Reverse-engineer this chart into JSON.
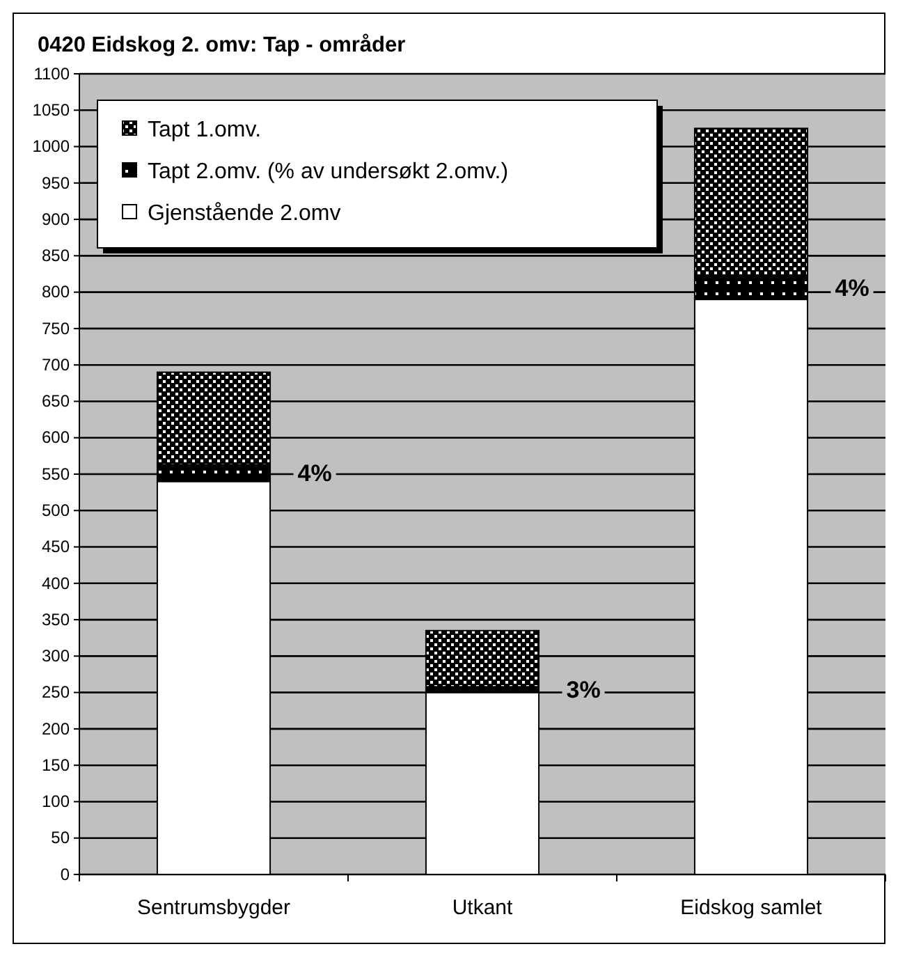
{
  "chart_data": {
    "type": "bar",
    "title": "0420 Eidskog 2. omv: Tap - områder",
    "categories": [
      "Sentrumsbygder",
      "Utkant",
      "Eidskog samlet"
    ],
    "stacked": true,
    "series": [
      {
        "name": "Gjenstående 2.omv",
        "color": "#ffffff",
        "values": [
          540,
          250,
          790
        ]
      },
      {
        "name": "Tapt 2.omv. (% av undersøkt 2.omv.)",
        "color": "#000000",
        "values": [
          23,
          8,
          33
        ]
      },
      {
        "name": "Tapt 1.omv.",
        "color": "#000000",
        "values": [
          127,
          77,
          202
        ]
      }
    ],
    "ylim": [
      0,
      1100
    ],
    "yticks": [
      0,
      50,
      100,
      150,
      200,
      250,
      300,
      350,
      400,
      450,
      500,
      550,
      600,
      650,
      700,
      750,
      800,
      850,
      900,
      950,
      1000,
      1050,
      1100
    ],
    "grid": "y",
    "legend": "top left",
    "annotations": [
      "4%",
      "3%",
      "4%"
    ]
  }
}
